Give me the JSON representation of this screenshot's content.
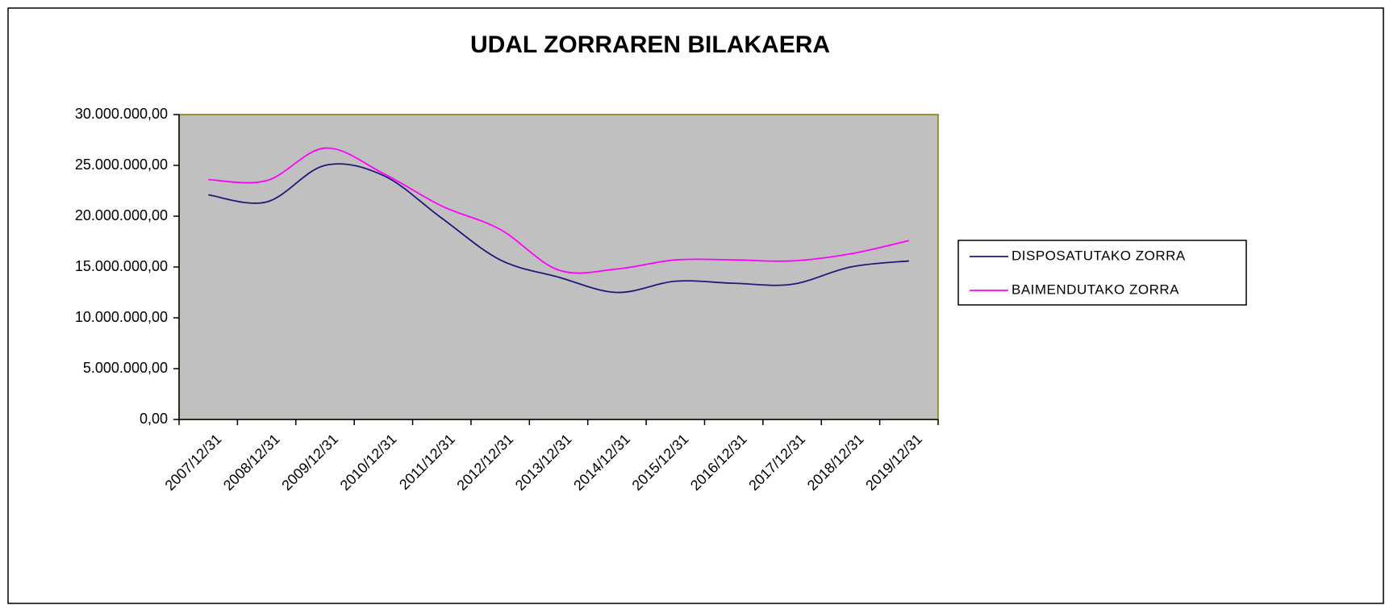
{
  "chart_data": {
    "type": "line",
    "title": "UDAL ZORRAREN BILAKAERA",
    "categories": [
      "2007/12/31",
      "2008/12/31",
      "2009/12/31",
      "2010/12/31",
      "2011/12/31",
      "2012/12/31",
      "2013/12/31",
      "2014/12/31",
      "2015/12/31",
      "2016/12/31",
      "2017/12/31",
      "2018/12/31",
      "2019/12/31"
    ],
    "series": [
      {
        "name": "DISPOSATUTAKO ZORRA",
        "color": "#1f1a7a",
        "values": [
          22100000,
          21400000,
          25000000,
          24000000,
          19800000,
          15700000,
          14000000,
          12500000,
          13600000,
          13400000,
          13300000,
          15000000,
          15600000
        ]
      },
      {
        "name": "BAIMENDUTAKO ZORRA",
        "color": "#ff00ff",
        "values": [
          23600000,
          23500000,
          26700000,
          24200000,
          21000000,
          18700000,
          14700000,
          14800000,
          15700000,
          15700000,
          15600000,
          16300000,
          17600000
        ]
      }
    ],
    "ylim": [
      0,
      30000000
    ],
    "yticks": [
      {
        "value": 0,
        "label": "0,00"
      },
      {
        "value": 5000000,
        "label": "5.000.000,00"
      },
      {
        "value": 10000000,
        "label": "10.000.000,00"
      },
      {
        "value": 15000000,
        "label": "15.000.000,00"
      },
      {
        "value": 20000000,
        "label": "20.000.000,00"
      },
      {
        "value": 25000000,
        "label": "25.000.000,00"
      },
      {
        "value": 30000000,
        "label": "30.000.000,00"
      }
    ],
    "legend": "right",
    "plot_background": "#c0c0c0",
    "smooth": true
  }
}
